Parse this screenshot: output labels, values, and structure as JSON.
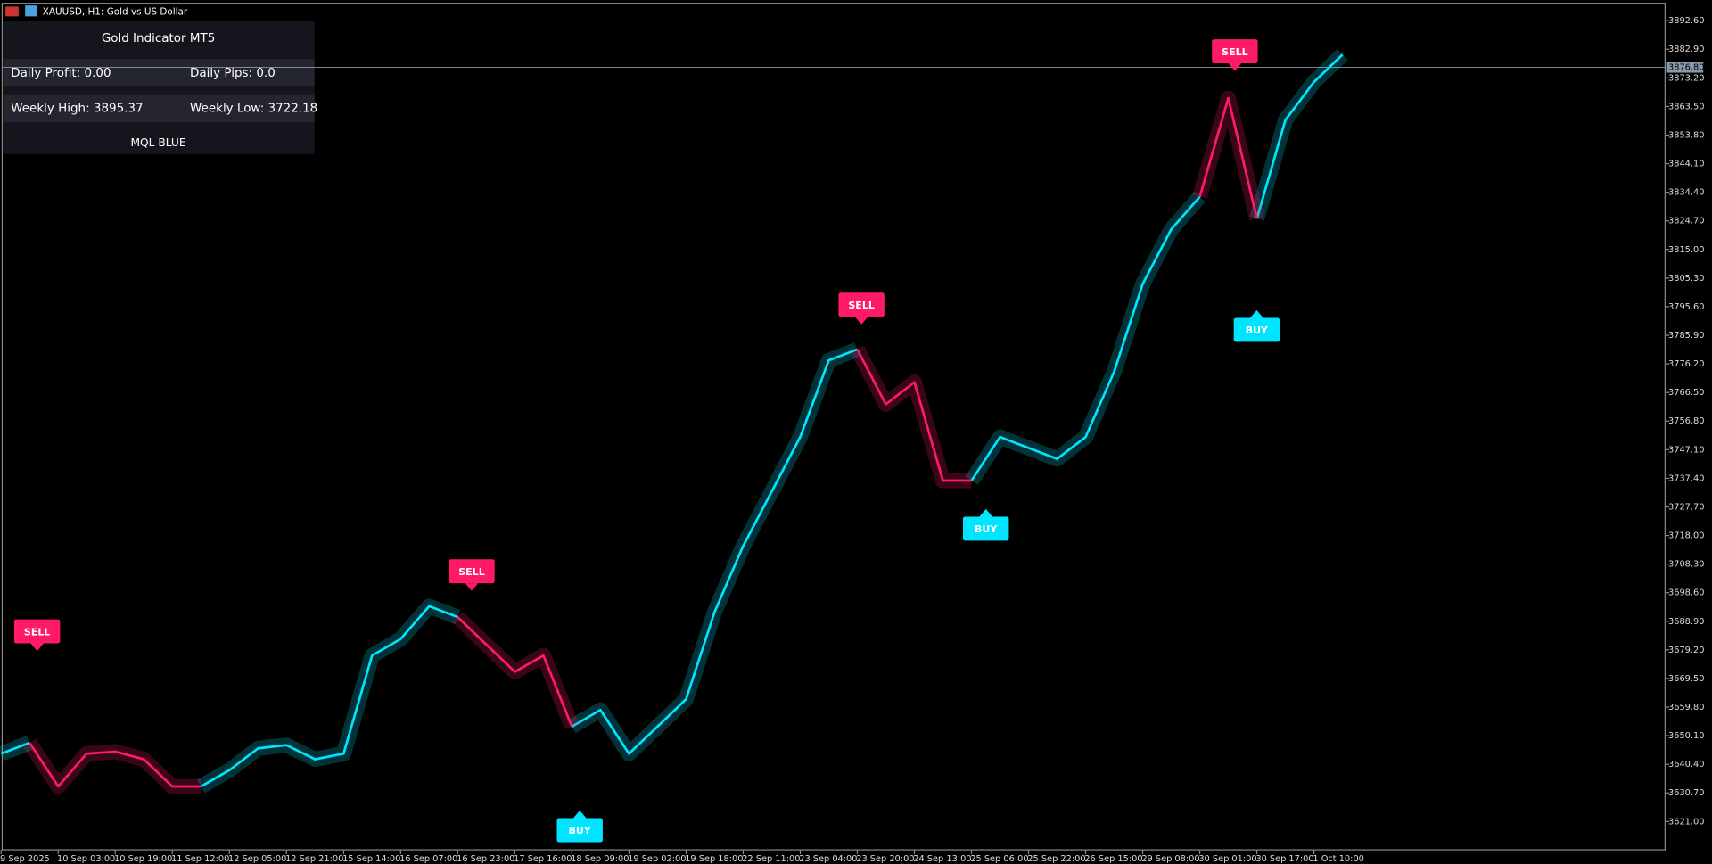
{
  "window_title": "XAUUSD, H1:  Gold vs US Dollar",
  "panel": {
    "title": "Gold Indicator MT5",
    "daily_profit": "Daily Profit: 0.00",
    "daily_pips": "Daily Pips:  0.0",
    "weekly_high": "Weekly High: 3895.37",
    "weekly_low": "Weekly Low: 3722.18",
    "footer": "MQL BLUE"
  },
  "signals": [
    "SELL",
    "SELL",
    "BUY",
    "SELL",
    "BUY",
    "SELL",
    "BUY"
  ],
  "chart_data": {
    "type": "line",
    "categories": [
      "9 Sep 2025",
      null,
      "10 Sep 03:00",
      null,
      "10 Sep 19:00",
      null,
      "11 Sep 12:00",
      null,
      "12 Sep 05:00",
      null,
      "12 Sep 21:00",
      null,
      "15 Sep 14:00",
      null,
      "16 Sep 07:00",
      null,
      "16 Sep 23:00",
      null,
      "17 Sep 16:00",
      null,
      "18 Sep 09:00",
      null,
      "19 Sep 02:00",
      null,
      "19 Sep 18:00",
      null,
      "22 Sep 11:00",
      null,
      "23 Sep 04:00",
      null,
      "23 Sep 20:00",
      null,
      "24 Sep 13:00",
      null,
      "25 Sep 06:00",
      null,
      "25 Sep 22:00",
      null,
      "26 Sep 15:00",
      null,
      "29 Sep 08:00",
      null,
      "30 Sep 01:00",
      null,
      "30 Sep 17:00",
      null,
      "1 Oct 10:00",
      null
    ],
    "series": [
      {
        "color": "#00e5ff",
        "values": [
          3644.0,
          3647.7,
          null,
          null,
          null,
          null,
          null,
          3632.9,
          3638.4,
          3645.8,
          3646.9,
          3642.1,
          3644.0,
          3677.3,
          3682.9,
          3694.0,
          3690.3,
          null,
          null,
          null,
          3653.2,
          3658.8,
          3644.0,
          3653.2,
          3662.5,
          3692.1,
          3714.4,
          3732.9,
          3751.4,
          3777.4,
          3781.1,
          null,
          null,
          null,
          3736.6,
          3751.4,
          3747.7,
          3744.0,
          3751.4,
          3773.6,
          3803.3,
          3821.8,
          3832.9,
          null,
          3825.5,
          3858.9,
          3871.8,
          3881.1
        ]
      },
      {
        "color": "#ff1a66",
        "values": [
          null,
          3647.7,
          3632.9,
          3644.0,
          3644.7,
          3642.1,
          3632.9,
          3632.9,
          null,
          null,
          null,
          null,
          null,
          null,
          null,
          null,
          3690.3,
          3681.0,
          3671.8,
          3677.3,
          3653.2,
          null,
          null,
          null,
          null,
          null,
          null,
          null,
          null,
          null,
          3781.1,
          3762.5,
          3770.0,
          3736.6,
          3736.6,
          null,
          null,
          null,
          null,
          null,
          null,
          null,
          3832.9,
          3866.3,
          3825.5,
          null,
          null,
          null
        ]
      }
    ],
    "ylim": [
      3611.4,
      3898.5
    ],
    "yticks": [
      {
        "value": 3621,
        "label": "3621.00"
      },
      {
        "value": 3630.7,
        "label": "3630.70"
      },
      {
        "value": 3640.4,
        "label": "3640.40"
      },
      {
        "value": 3650.1,
        "label": "3650.10"
      },
      {
        "value": 3659.8,
        "label": "3659.80"
      },
      {
        "value": 3669.5,
        "label": "3669.50"
      },
      {
        "value": 3679.2,
        "label": "3679.20"
      },
      {
        "value": 3688.9,
        "label": "3688.90"
      },
      {
        "value": 3698.6,
        "label": "3698.60"
      },
      {
        "value": 3708.3,
        "label": "3708.30"
      },
      {
        "value": 3718,
        "label": "3718.00"
      },
      {
        "value": 3727.7,
        "label": "3727.70"
      },
      {
        "value": 3737.4,
        "label": "3737.40"
      },
      {
        "value": 3747.1,
        "label": "3747.10"
      },
      {
        "value": 3756.8,
        "label": "3756.80"
      },
      {
        "value": 3766.5,
        "label": "3766.50"
      },
      {
        "value": 3776.2,
        "label": "3776.20"
      },
      {
        "value": 3785.9,
        "label": "3785.90"
      },
      {
        "value": 3795.6,
        "label": "3795.60"
      },
      {
        "value": 3805.3,
        "label": "3805.30"
      },
      {
        "value": 3815,
        "label": "3815.00"
      },
      {
        "value": 3824.7,
        "label": "3824.70"
      },
      {
        "value": 3834.4,
        "label": "3834.40"
      },
      {
        "value": 3844.1,
        "label": "3844.10"
      },
      {
        "value": 3853.8,
        "label": "3853.80"
      },
      {
        "value": 3863.5,
        "label": "3863.50"
      },
      {
        "value": 3873.2,
        "label": "3873.20"
      },
      {
        "value": 3882.9,
        "label": "3882.90"
      },
      {
        "value": 3892.6,
        "label": "3892.60"
      }
    ],
    "current_price": {
      "value": 3876.8,
      "label": "3876.80"
    }
  }
}
